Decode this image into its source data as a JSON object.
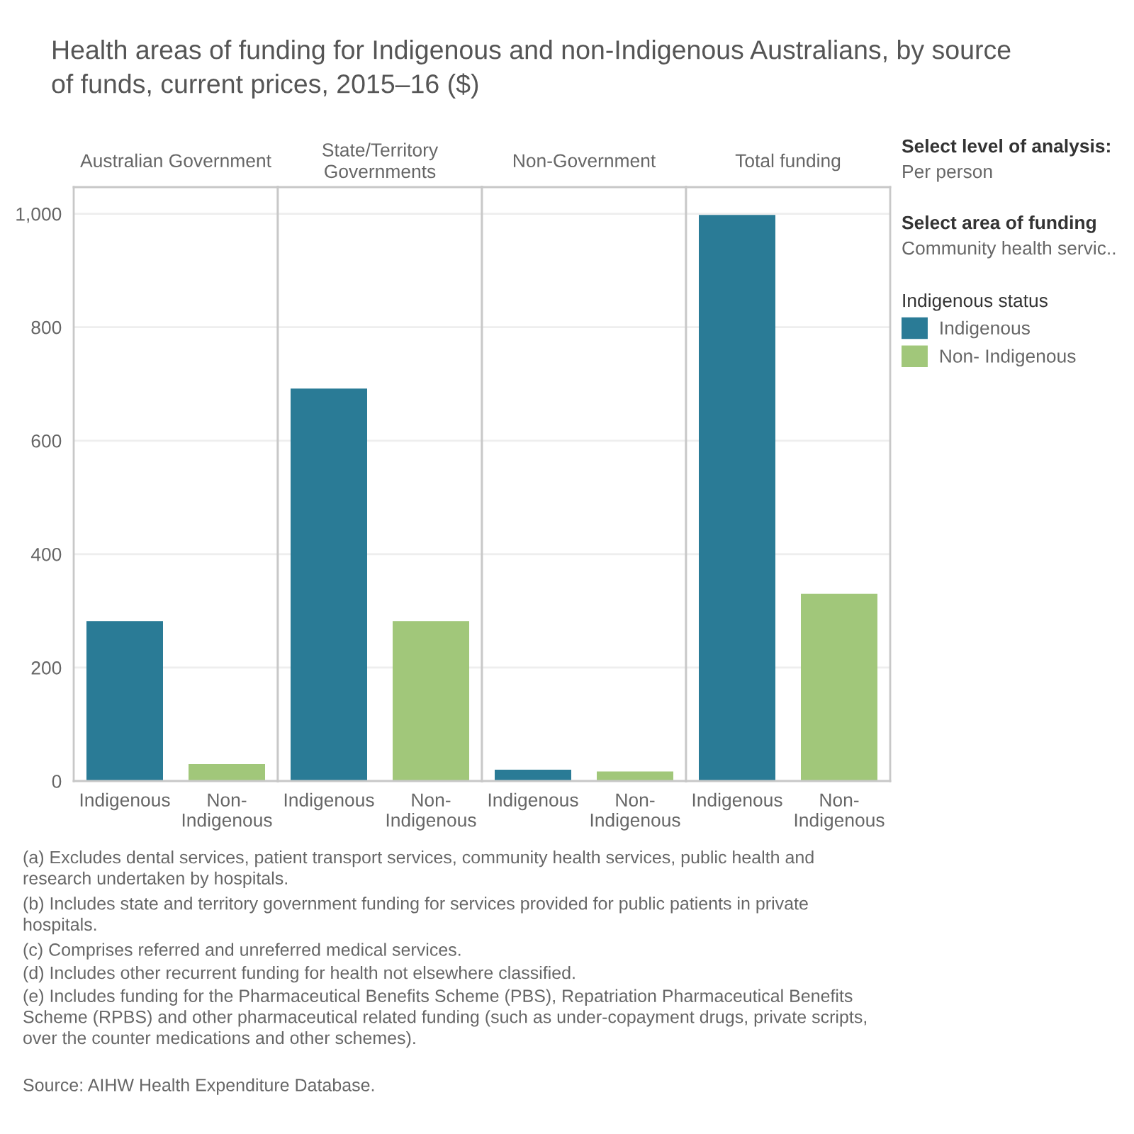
{
  "chart_data": [
    {
      "type": "bar",
      "title": "Australian Government",
      "categories": [
        "Indigenous",
        "Non-\nIndigenous"
      ],
      "series": [
        {
          "name": "Indigenous",
          "color": "#2a7b96",
          "values": [
            282,
            null
          ]
        },
        {
          "name": "Non- Indigenous",
          "color": "#a1c77a",
          "values": [
            null,
            30
          ]
        }
      ],
      "ylim": [
        0,
        1047
      ],
      "yticks": [
        0,
        200,
        400,
        600,
        800,
        {
          "value": 1000,
          "label": "1,000"
        }
      ],
      "grid": "y",
      "legend": "right",
      "legend_title": "Indigenous status",
      "annotations": [
        "Health areas of funding for Indigenous and non-Indigenous Australians, by source\nof funds, current prices, 2015–16 ($)",
        "(a) Excludes dental services, patient transport services, community health services, public health and\nresearch undertaken by hospitals.",
        "(b) Includes state and territory government funding for services provided for public patients in private\nhospitals.",
        "(c) Comprises referred and unreferred medical services.",
        "(d) Includes other recurrent funding for health not elsewhere classified.",
        "(e) Includes funding for the Pharmaceutical Benefits Scheme (PBS), Repatriation Pharmaceutical Benefits\nScheme (RPBS) and other pharmaceutical related funding (such as under-copayment drugs, private scripts,\nover the counter medications and other schemes).",
        "Source: AIHW Health Expenditure Database."
      ]
    },
    {
      "type": "bar",
      "title": "State/Territory\nGovernments",
      "categories": [
        "Indigenous",
        "Non-\nIndigenous"
      ],
      "values": [
        692,
        282
      ],
      "colors": [
        "#2a7b96",
        "#a1c77a"
      ],
      "ylim": [
        0,
        1047
      ],
      "yticks": [
        0,
        200,
        400,
        600,
        800,
        1000
      ],
      "grid": "y",
      "tick_labels": "x"
    },
    {
      "type": "bar",
      "title": "Non-Government",
      "categories": [
        "Indigenous",
        "Non-\nIndigenous"
      ],
      "values": [
        20,
        17
      ],
      "colors": [
        "#2a7b96",
        "#a1c77a"
      ],
      "ylim": [
        0,
        1047
      ],
      "yticks": [
        0,
        200,
        400,
        600,
        800,
        1000
      ],
      "grid": "y",
      "tick_labels": "x"
    },
    {
      "type": "bar",
      "title": "Total funding",
      "categories": [
        "Indigenous",
        "Non-\nIndigenous"
      ],
      "values": [
        998,
        330
      ],
      "colors": [
        "#2a7b96",
        "#a1c77a"
      ],
      "ylim": [
        0,
        1047
      ],
      "yticks": [
        0,
        200,
        400,
        600,
        800,
        1000
      ],
      "grid": "y",
      "tick_labels": "x",
      "annotations": [
        "Select level of analysis:",
        "Per person",
        "Select area of funding",
        "Community health servic.."
      ]
    }
  ]
}
